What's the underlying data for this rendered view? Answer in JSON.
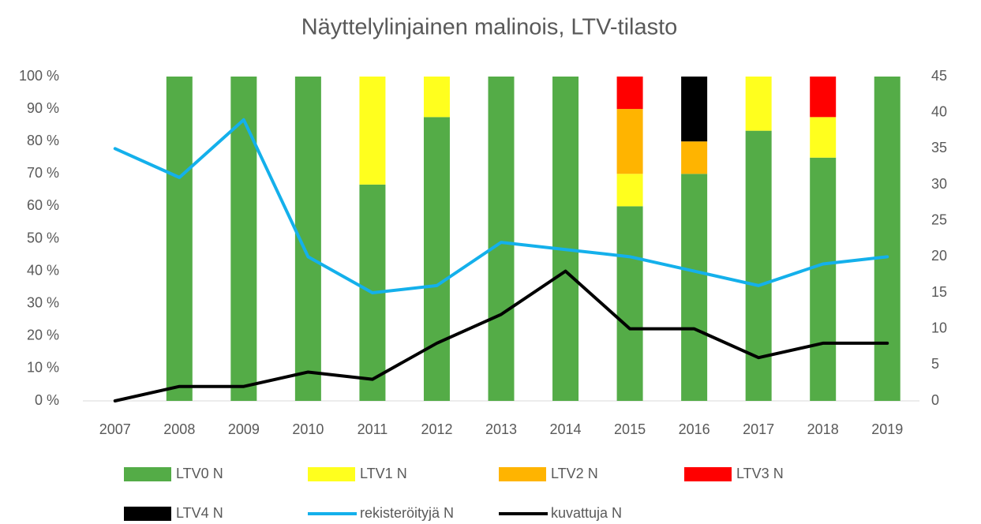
{
  "chart_data": {
    "type": "bar",
    "stacked": true,
    "title": "Näyttelylinjainen malinois, LTV-tilasto",
    "categories": [
      "2007",
      "2008",
      "2009",
      "2010",
      "2011",
      "2012",
      "2013",
      "2014",
      "2015",
      "2016",
      "2017",
      "2018",
      "2019"
    ],
    "series": [
      {
        "name": "LTV0 N",
        "color": "#54ac47",
        "values": [
          null,
          100,
          100,
          100,
          66.7,
          87.5,
          100,
          100,
          60,
          70,
          83.3,
          75,
          100
        ]
      },
      {
        "name": "LTV1 N",
        "color": "#ffff1e",
        "values": [
          null,
          0,
          0,
          0,
          33.3,
          12.5,
          0,
          0,
          10,
          0,
          16.7,
          12.5,
          0
        ]
      },
      {
        "name": "LTV2 N",
        "color": "#ffb400",
        "values": [
          null,
          0,
          0,
          0,
          0,
          0,
          0,
          0,
          20,
          10,
          0,
          0,
          0
        ]
      },
      {
        "name": "LTV3 N",
        "color": "#ff0000",
        "values": [
          null,
          0,
          0,
          0,
          0,
          0,
          0,
          0,
          10,
          0,
          0,
          12.5,
          0
        ]
      },
      {
        "name": "LTV4 N",
        "color": "#000000",
        "values": [
          null,
          0,
          0,
          0,
          0,
          0,
          0,
          0,
          0,
          20,
          0,
          0,
          0
        ]
      },
      {
        "name": "rekisteröityjä N",
        "type": "line",
        "axis": "y2",
        "color": "#14b0eb",
        "values": [
          35,
          31,
          39,
          20,
          15,
          16,
          22,
          21,
          20,
          18,
          16,
          19,
          20
        ]
      },
      {
        "name": "kuvattuja N",
        "type": "line",
        "axis": "y2",
        "color": "#000000",
        "values": [
          0,
          2,
          2,
          4,
          3,
          8,
          12,
          18,
          10,
          10,
          6,
          8,
          8
        ]
      }
    ],
    "ylim": [
      0,
      100
    ],
    "yticks": [
      {
        "value": 0,
        "label": "0 %"
      },
      {
        "value": 10,
        "label": "10 %"
      },
      {
        "value": 20,
        "label": "20 %"
      },
      {
        "value": 30,
        "label": "30 %"
      },
      {
        "value": 40,
        "label": "40 %"
      },
      {
        "value": 50,
        "label": "50 %"
      },
      {
        "value": 60,
        "label": "60 %"
      },
      {
        "value": 70,
        "label": "70 %"
      },
      {
        "value": 80,
        "label": "80 %"
      },
      {
        "value": 90,
        "label": "90 %"
      },
      {
        "value": 100,
        "label": "100 %"
      }
    ],
    "y2lim": [
      0,
      45
    ],
    "y2ticks": [
      0,
      5,
      10,
      15,
      20,
      25,
      30,
      35,
      40,
      45
    ],
    "grid": false,
    "legend": "bottom"
  }
}
